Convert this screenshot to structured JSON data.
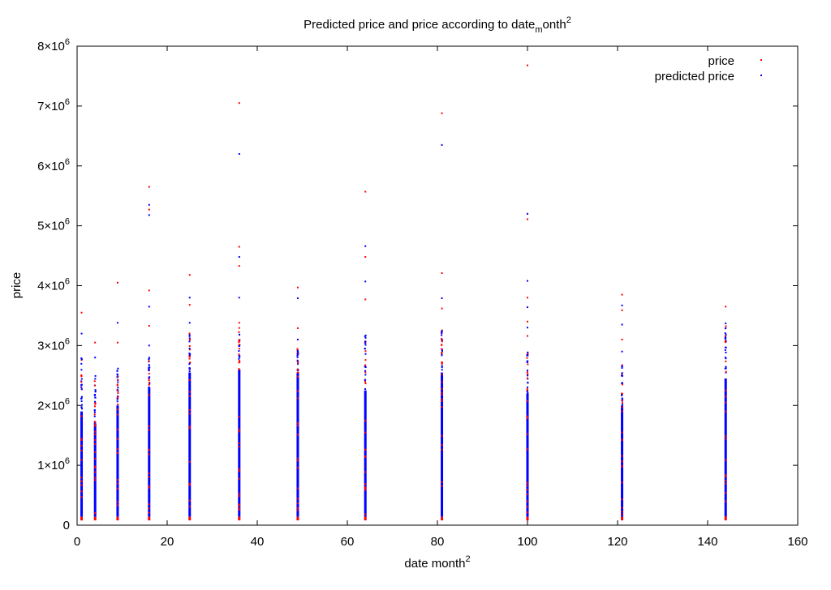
{
  "chart_data": {
    "type": "scatter",
    "title_parts": [
      "Predicted price and price according to date",
      "m",
      "onth",
      "2"
    ],
    "xlabel_parts": [
      "date month",
      "2"
    ],
    "ylabel": "price",
    "xlim": [
      0,
      160
    ],
    "ylim": [
      0,
      8000000
    ],
    "x_ticks": [
      {
        "value": 0,
        "label": "0"
      },
      {
        "value": 20,
        "label": "20"
      },
      {
        "value": 40,
        "label": "40"
      },
      {
        "value": 60,
        "label": "60"
      },
      {
        "value": 80,
        "label": "80"
      },
      {
        "value": 100,
        "label": "100"
      },
      {
        "value": 120,
        "label": "120"
      },
      {
        "value": 140,
        "label": "140"
      },
      {
        "value": 160,
        "label": "160"
      }
    ],
    "y_ticks": [
      {
        "value": 0,
        "label": "0",
        "exp": ""
      },
      {
        "value": 1000000,
        "label": "1×10",
        "exp": "6"
      },
      {
        "value": 2000000,
        "label": "2×10",
        "exp": "6"
      },
      {
        "value": 3000000,
        "label": "3×10",
        "exp": "6"
      },
      {
        "value": 4000000,
        "label": "4×10",
        "exp": "6"
      },
      {
        "value": 5000000,
        "label": "5×10",
        "exp": "6"
      },
      {
        "value": 6000000,
        "label": "6×10",
        "exp": "6"
      },
      {
        "value": 7000000,
        "label": "7×10",
        "exp": "6"
      },
      {
        "value": 8000000,
        "label": "8×10",
        "exp": "6"
      }
    ],
    "legend_position": "top-right",
    "columns": [
      {
        "x": 1,
        "dense_max": 1900000,
        "sparse_max": 2800000,
        "outliers": [
          3550000,
          3200000
        ]
      },
      {
        "x": 4,
        "dense_max": 1700000,
        "sparse_max": 2500000,
        "outliers": [
          3050000,
          2800000
        ]
      },
      {
        "x": 9,
        "dense_max": 2000000,
        "sparse_max": 2650000,
        "outliers": [
          4050000,
          3380000,
          3050000
        ]
      },
      {
        "x": 16,
        "dense_max": 2300000,
        "sparse_max": 2800000,
        "outliers": [
          5650000,
          5350000,
          5270000,
          5180000,
          3920000,
          3650000,
          3330000,
          3000000
        ]
      },
      {
        "x": 25,
        "dense_max": 2550000,
        "sparse_max": 3250000,
        "outliers": [
          4180000,
          3800000,
          3680000,
          3380000
        ]
      },
      {
        "x": 36,
        "dense_max": 2600000,
        "sparse_max": 3300000,
        "outliers": [
          7050000,
          6200000,
          4650000,
          4480000,
          4330000,
          3800000,
          3380000
        ]
      },
      {
        "x": 49,
        "dense_max": 2550000,
        "sparse_max": 2950000,
        "outliers": [
          3970000,
          3790000,
          3290000,
          3100000
        ]
      },
      {
        "x": 64,
        "dense_max": 2250000,
        "sparse_max": 3200000,
        "outliers": [
          5570000,
          4660000,
          4480000,
          4070000,
          3770000
        ]
      },
      {
        "x": 81,
        "dense_max": 2550000,
        "sparse_max": 3300000,
        "outliers": [
          6880000,
          6350000,
          4210000,
          3790000,
          3620000
        ]
      },
      {
        "x": 100,
        "dense_max": 2200000,
        "sparse_max": 2900000,
        "outliers": [
          7680000,
          5200000,
          5110000,
          4080000,
          3800000,
          3640000,
          3400000,
          3300000,
          3160000
        ]
      },
      {
        "x": 121,
        "dense_max": 2000000,
        "sparse_max": 2700000,
        "outliers": [
          3850000,
          3670000,
          3590000,
          3350000,
          3100000,
          2900000
        ]
      },
      {
        "x": 144,
        "dense_max": 2450000,
        "sparse_max": 3400000,
        "outliers": [
          3650000,
          3290000,
          3160000
        ]
      }
    ],
    "series": [
      {
        "name": "price",
        "color": "#ff0000"
      },
      {
        "name": "predicted price",
        "color": "#0000ff"
      }
    ]
  }
}
